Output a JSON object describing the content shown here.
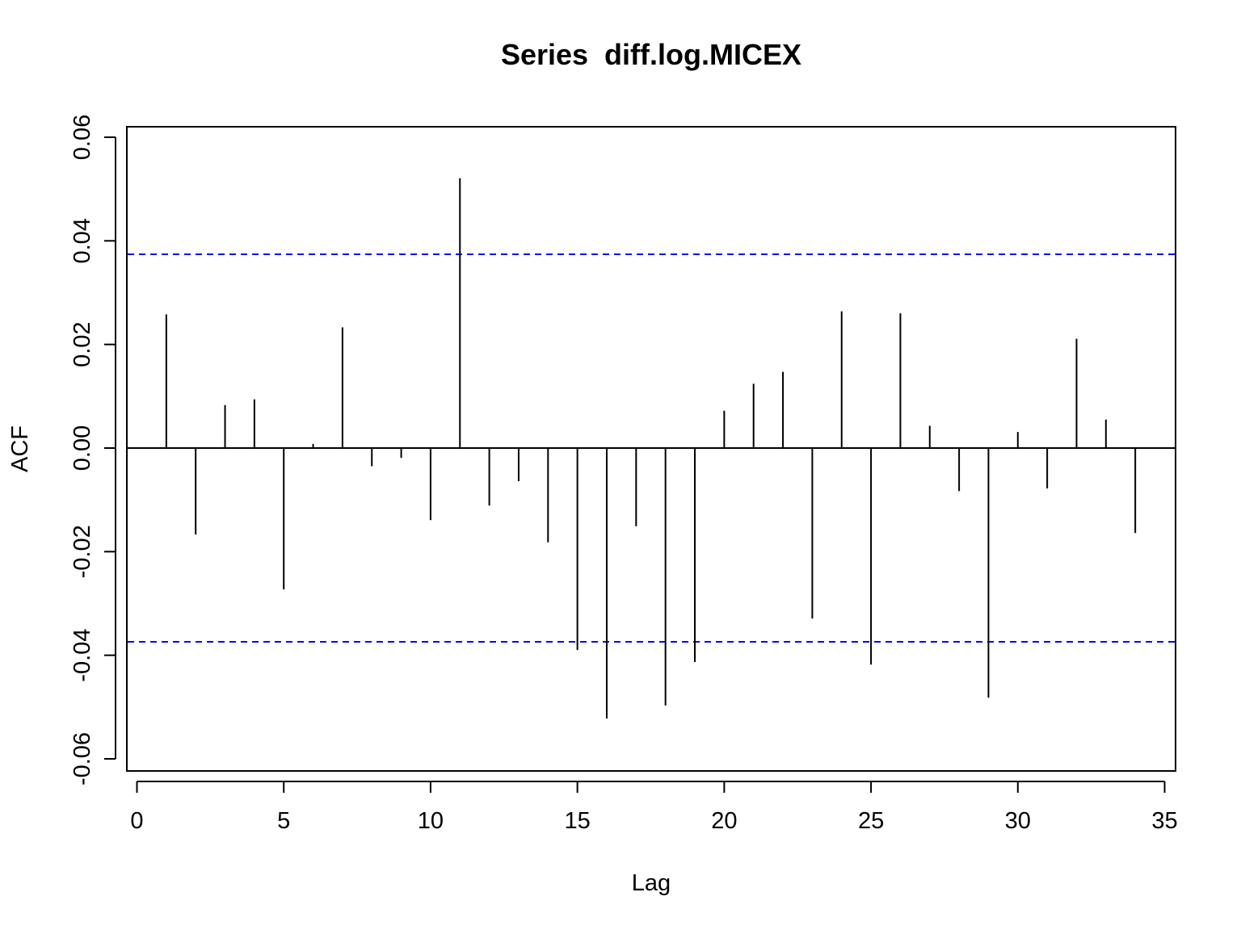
{
  "chart_data": {
    "type": "bar",
    "title": "Series  diff.log.MICEX",
    "xlabel": "Lag",
    "ylabel": "ACF",
    "xlim": [
      0,
      35
    ],
    "ylim": [
      -0.06,
      0.06
    ],
    "x_ticks": [
      "0",
      "5",
      "10",
      "15",
      "20",
      "25",
      "30",
      "35"
    ],
    "y_ticks": [
      "-0.06",
      "-0.04",
      "-0.02",
      "0.00",
      "0.02",
      "0.04",
      "0.06"
    ],
    "x_tick_values": [
      0,
      5,
      10,
      15,
      20,
      25,
      30,
      35
    ],
    "y_tick_values": [
      -0.06,
      -0.04,
      -0.02,
      0.0,
      0.02,
      0.04,
      0.06
    ],
    "lags": [
      1,
      2,
      3,
      4,
      5,
      6,
      7,
      8,
      9,
      10,
      11,
      12,
      13,
      14,
      15,
      16,
      17,
      18,
      19,
      20,
      21,
      22,
      23,
      24,
      25,
      26,
      27,
      28,
      29,
      30,
      31,
      32,
      33,
      34
    ],
    "acf": [
      0.0258,
      -0.0167,
      0.0083,
      0.0094,
      -0.0273,
      0.0008,
      0.0233,
      -0.0035,
      -0.0019,
      -0.0139,
      0.0521,
      -0.0111,
      -0.0064,
      -0.0182,
      -0.039,
      -0.0522,
      -0.0151,
      -0.0497,
      -0.0413,
      0.0072,
      0.0124,
      0.0147,
      -0.0329,
      0.0264,
      -0.0418,
      0.026,
      0.0043,
      -0.0083,
      -0.0482,
      0.0031,
      -0.0078,
      0.0211,
      0.0055,
      -0.0164
    ],
    "confidence_bound": 0.0374,
    "colors": {
      "spikes": "#000000",
      "confidence": "#0000ff",
      "zero_line": "#000000"
    },
    "grid": false
  }
}
